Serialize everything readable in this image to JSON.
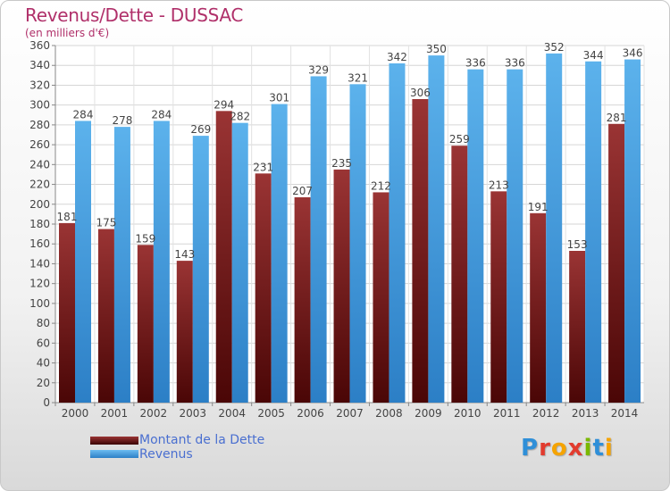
{
  "header": {
    "title": "Revenus/Dette - DUSSAC",
    "subtitle": "(en milliers d'€)"
  },
  "legend": {
    "dette": "Montant de la Dette",
    "revenus": "Revenus"
  },
  "logo": {
    "text": "Proxiti",
    "colors": [
      "#2f8fd8",
      "#e23b2e",
      "#f5a300",
      "#e23b2e",
      "#7ab800",
      "#2f8fd8",
      "#f5a300"
    ]
  },
  "colors": {
    "dette": "#7a1e1e",
    "revenus": "#4aa3e0"
  },
  "chart_data": {
    "type": "bar",
    "categories": [
      "2000",
      "2001",
      "2002",
      "2003",
      "2004",
      "2005",
      "2006",
      "2007",
      "2008",
      "2009",
      "2010",
      "2011",
      "2012",
      "2013",
      "2014"
    ],
    "series": [
      {
        "name": "Montant de la Dette",
        "values": [
          181,
          175,
          159,
          143,
          294,
          231,
          207,
          235,
          212,
          306,
          259,
          213,
          191,
          153,
          281
        ]
      },
      {
        "name": "Revenus",
        "values": [
          284,
          278,
          284,
          269,
          282,
          301,
          329,
          321,
          342,
          350,
          336,
          336,
          352,
          344,
          346
        ]
      }
    ],
    "ylim": [
      0,
      360
    ],
    "yticks": [
      0,
      20,
      40,
      60,
      80,
      100,
      120,
      140,
      160,
      180,
      200,
      220,
      240,
      260,
      280,
      300,
      320,
      340,
      360
    ],
    "grid": true,
    "legend_position": "bottom-left"
  }
}
